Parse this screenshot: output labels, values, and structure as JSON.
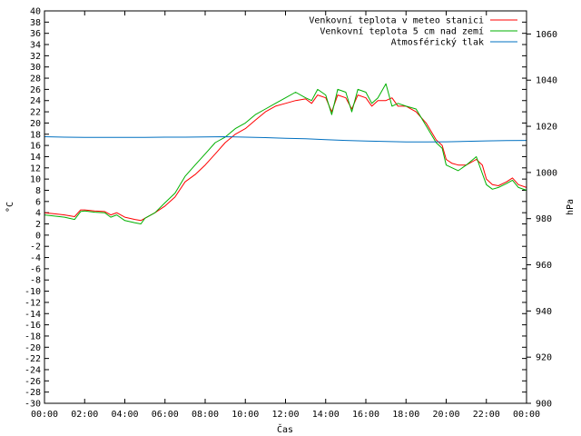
{
  "chart_data": {
    "type": "line",
    "xlabel": "Čas",
    "ylabel": "°C",
    "y2label": "hPa",
    "xlim": [
      0,
      24
    ],
    "ylim": [
      -30,
      40
    ],
    "y2lim": [
      900,
      1070
    ],
    "x_ticks": [
      "00:00",
      "02:00",
      "04:00",
      "06:00",
      "08:00",
      "10:00",
      "12:00",
      "14:00",
      "16:00",
      "18:00",
      "20:00",
      "22:00",
      "00:00"
    ],
    "y_ticks": [
      -30,
      -28,
      -26,
      -24,
      -22,
      -20,
      -18,
      -16,
      -14,
      -12,
      -10,
      -8,
      -6,
      -4,
      -2,
      0,
      2,
      4,
      6,
      8,
      10,
      12,
      14,
      16,
      18,
      20,
      22,
      24,
      26,
      28,
      30,
      32,
      34,
      36,
      38,
      40
    ],
    "y2_ticks": [
      900,
      920,
      940,
      960,
      980,
      1000,
      1020,
      1040,
      1060
    ],
    "grid": false,
    "legend_position": "top-right",
    "series": [
      {
        "name": "Venkovní teplota v meteo stanici",
        "color": "#ff0000",
        "axis": "left",
        "x": [
          0,
          0.5,
          1,
          1.5,
          1.8,
          2,
          2.5,
          3,
          3.3,
          3.6,
          4,
          4.5,
          4.8,
          5,
          5.5,
          6,
          6.5,
          7,
          7.5,
          8,
          8.5,
          9,
          9.5,
          10,
          10.5,
          11,
          11.5,
          12,
          12.5,
          13,
          13.3,
          13.6,
          14,
          14.3,
          14.6,
          15,
          15.3,
          15.6,
          16,
          16.3,
          16.6,
          17,
          17.3,
          17.6,
          18,
          18.5,
          19,
          19.5,
          19.8,
          20,
          20.3,
          20.6,
          21,
          21.5,
          21.8,
          22,
          22.3,
          22.6,
          23,
          23.3,
          23.6,
          24
        ],
        "y": [
          4,
          3.8,
          3.6,
          3.3,
          4.5,
          4.5,
          4.3,
          4.2,
          3.6,
          4,
          3.2,
          2.8,
          2.6,
          3,
          4,
          5.2,
          6.8,
          9.5,
          10.8,
          12.5,
          14.5,
          16.5,
          18,
          19,
          20.5,
          22,
          23,
          23.5,
          24,
          24.3,
          23.5,
          25,
          24.5,
          22,
          25,
          24.5,
          22.5,
          25,
          24.5,
          23,
          24,
          24,
          24.5,
          23,
          23,
          22,
          20,
          17,
          16,
          13.5,
          12.8,
          12.5,
          12.5,
          13.5,
          12.5,
          10,
          9,
          8.8,
          9.5,
          10.2,
          9,
          8.5
        ]
      },
      {
        "name": "Venkovní teplota 5 cm nad zemí",
        "color": "#00b000",
        "axis": "left",
        "x": [
          0,
          0.5,
          1,
          1.5,
          1.8,
          2,
          2.5,
          3,
          3.3,
          3.6,
          4,
          4.5,
          4.8,
          5,
          5.5,
          6,
          6.5,
          7,
          7.5,
          8,
          8.5,
          9,
          9.5,
          10,
          10.5,
          11,
          11.5,
          12,
          12.5,
          13,
          13.3,
          13.6,
          14,
          14.3,
          14.6,
          15,
          15.3,
          15.6,
          16,
          16.3,
          16.6,
          17,
          17.3,
          17.6,
          18,
          18.5,
          19,
          19.5,
          19.8,
          20,
          20.3,
          20.6,
          21,
          21.5,
          21.8,
          22,
          22.3,
          22.6,
          23,
          23.3,
          23.6,
          24
        ],
        "y": [
          3.6,
          3.4,
          3.2,
          2.8,
          4.2,
          4.3,
          4.1,
          4,
          3.2,
          3.6,
          2.6,
          2.2,
          2,
          3,
          4,
          5.8,
          7.5,
          10.5,
          12.5,
          14.5,
          16.5,
          17.5,
          19,
          20,
          21.5,
          22.5,
          23.5,
          24.5,
          25.5,
          24.5,
          24,
          26,
          25,
          21.5,
          26,
          25.5,
          22,
          26,
          25.5,
          23.5,
          24.5,
          27,
          23,
          23.5,
          23,
          22.5,
          19.5,
          16.5,
          15.5,
          12.5,
          12,
          11.5,
          12.5,
          14,
          11,
          9,
          8.2,
          8.5,
          9.2,
          9.8,
          8.5,
          8
        ]
      },
      {
        "name": "Atmosférický tlak",
        "color": "#0070c0",
        "axis": "right",
        "x": [
          0,
          1,
          2,
          3,
          4,
          5,
          6,
          7,
          8,
          9,
          10,
          11,
          12,
          13,
          14,
          15,
          16,
          17,
          18,
          19,
          20,
          21,
          22,
          23,
          24
        ],
        "y": [
          1015.5,
          1015.3,
          1015.2,
          1015.2,
          1015.2,
          1015.2,
          1015.3,
          1015.3,
          1015.4,
          1015.5,
          1015.3,
          1015.1,
          1014.8,
          1014.6,
          1014.2,
          1013.9,
          1013.6,
          1013.4,
          1013.2,
          1013.2,
          1013.3,
          1013.5,
          1013.7,
          1013.8,
          1013.9
        ]
      }
    ]
  }
}
